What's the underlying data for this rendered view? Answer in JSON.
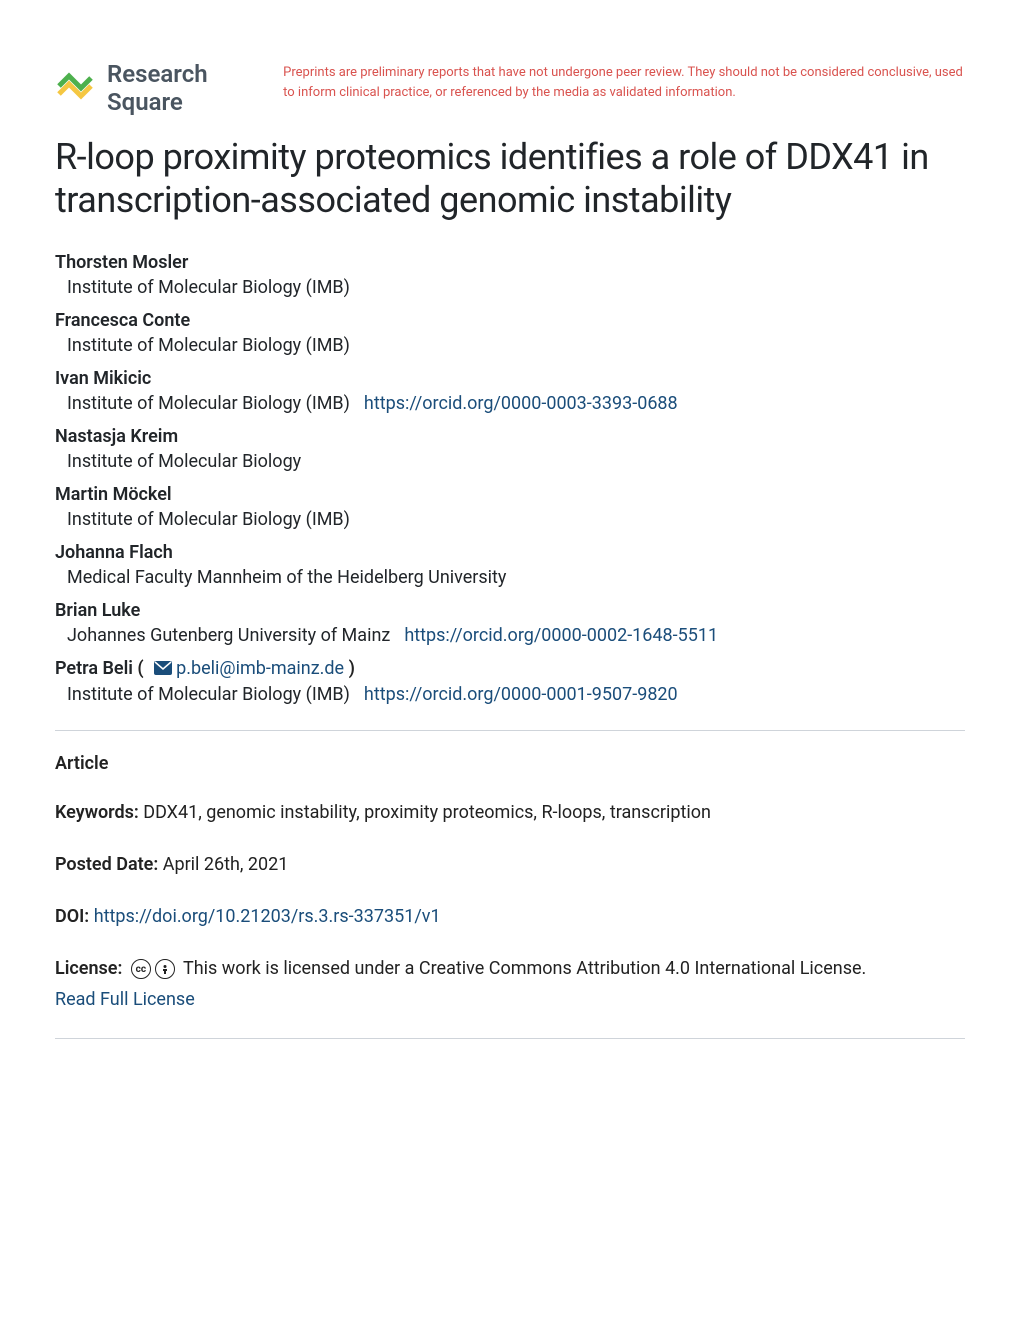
{
  "header": {
    "logo_text": "Research Square",
    "disclaimer": "Preprints are preliminary reports that have not undergone peer review. They should not be considered conclusive, used to inform clinical practice, or referenced by the media as validated information."
  },
  "title": "R-loop proximity proteomics identifies a role of DDX41 in transcription-associated genomic instability",
  "authors": [
    {
      "name": "Thorsten Mosler",
      "affiliation": "Institute of Molecular Biology (IMB)",
      "orcid": null,
      "corresponding": false
    },
    {
      "name": "Francesca Conte",
      "affiliation": "Institute of Molecular Biology (IMB)",
      "orcid": null,
      "corresponding": false
    },
    {
      "name": "Ivan Mikicic",
      "affiliation": "Institute of Molecular Biology (IMB)",
      "orcid": "https://orcid.org/0000-0003-3393-0688",
      "corresponding": false
    },
    {
      "name": "Nastasja Kreim",
      "affiliation": "Institute of Molecular Biology",
      "orcid": null,
      "corresponding": false
    },
    {
      "name": "Martin Möckel",
      "affiliation": "Institute of Molecular Biology (IMB)",
      "orcid": null,
      "corresponding": false
    },
    {
      "name": "Johanna Flach",
      "affiliation": "Medical Faculty Mannheim of the Heidelberg University",
      "orcid": null,
      "corresponding": false
    },
    {
      "name": "Brian Luke",
      "affiliation": "Johannes Gutenberg University of Mainz",
      "orcid": "https://orcid.org/0000-0002-1648-5511",
      "corresponding": false
    },
    {
      "name": "Petra Beli",
      "affiliation": "Institute of Molecular Biology (IMB)",
      "orcid": "https://orcid.org/0000-0001-9507-9820",
      "corresponding": true,
      "email": "p.beli@imb-mainz.de"
    }
  ],
  "article_type": "Article",
  "keywords_label": "Keywords:",
  "keywords": "DDX41, genomic instability, proximity proteomics, R-loops, transcription",
  "posted_label": "Posted Date:",
  "posted_date": "April 26th, 2021",
  "doi_label": "DOI:",
  "doi": "https://doi.org/10.21203/rs.3.rs-337351/v1",
  "license_label": "License:",
  "license_text": "This work is licensed under a Creative Commons Attribution 4.0 International License.",
  "license_link_text": "Read Full License",
  "colors": {
    "link": "#1a4d7a",
    "disclaimer": "#d9534f",
    "text": "#212529",
    "logo_text": "#4a5560",
    "divider": "#cfd4da"
  }
}
